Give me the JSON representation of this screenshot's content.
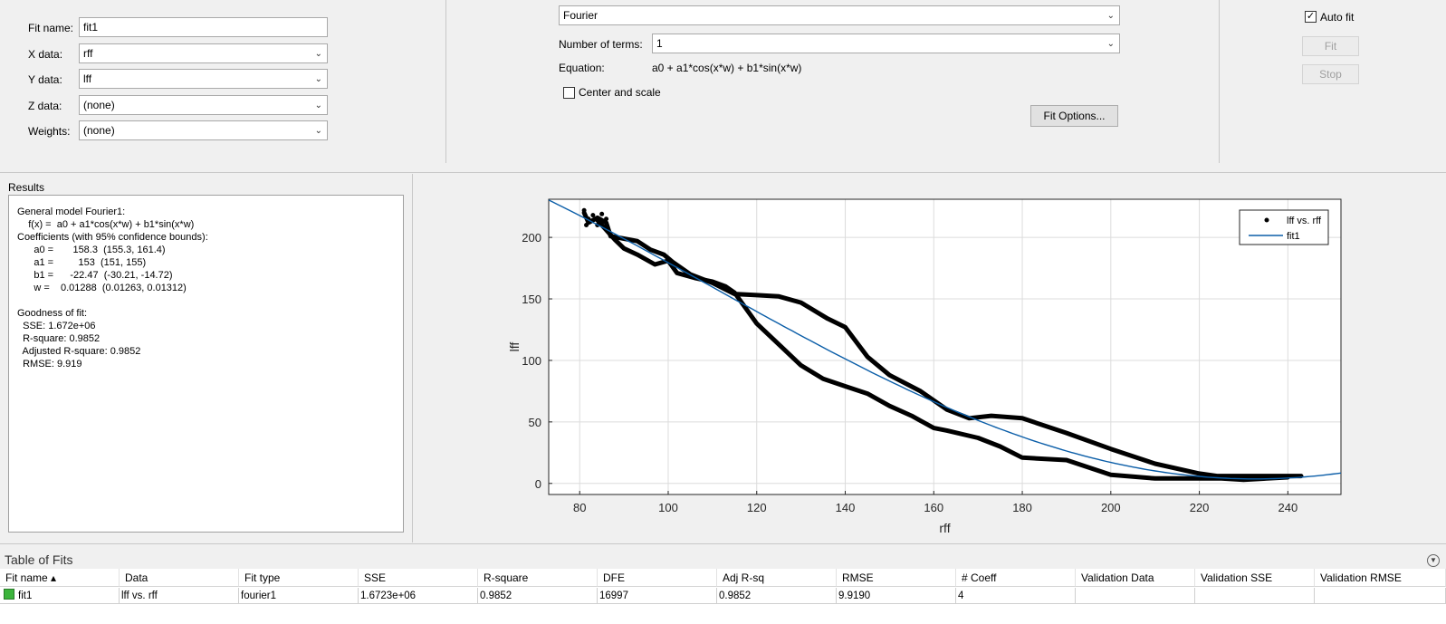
{
  "fit_settings": {
    "fit_name_label": "Fit name:",
    "fit_name_value": "fit1",
    "x_data_label": "X data:",
    "x_data_value": "rff",
    "y_data_label": "Y data:",
    "y_data_value": "lff",
    "z_data_label": "Z data:",
    "z_data_value": "(none)",
    "weights_label": "Weights:",
    "weights_value": "(none)"
  },
  "model": {
    "fit_type": "Fourier",
    "num_terms_label": "Number of terms:",
    "num_terms_value": "1",
    "equation_label": "Equation:",
    "equation_value": "a0 + a1*cos(x*w) + b1*sin(x*w)",
    "center_scale_label": "Center and scale",
    "center_scale_checked": false,
    "fit_options_label": "Fit Options..."
  },
  "controls": {
    "auto_fit_label": "Auto fit",
    "auto_fit_checked": true,
    "fit_label": "Fit",
    "stop_label": "Stop"
  },
  "results": {
    "title": "Results",
    "lines": [
      "General model Fourier1:",
      "    f(x) =  a0 + a1*cos(x*w) + b1*sin(x*w)",
      "Coefficients (with 95% confidence bounds):",
      "      a0 =       158.3  (155.3, 161.4)",
      "      a1 =         153  (151, 155)",
      "      b1 =      -22.47  (-30.21, -14.72)",
      "      w =    0.01288  (0.01263, 0.01312)",
      "",
      "Goodness of fit:",
      "  SSE: 1.672e+06",
      "  R-square: 0.9852",
      "  Adjusted R-square: 0.9852",
      "  RMSE: 9.919"
    ]
  },
  "chart_data": {
    "type": "scatter",
    "xlabel": "rff",
    "ylabel": "lff",
    "xlim": [
      73,
      252
    ],
    "ylim": [
      -9,
      231
    ],
    "xticks": [
      80,
      100,
      120,
      140,
      160,
      180,
      200,
      220,
      240
    ],
    "yticks": [
      0,
      50,
      100,
      150,
      200
    ],
    "grid": true,
    "legend_position": "top-right",
    "series": [
      {
        "name": "lff vs. rff",
        "style": "black dots",
        "color": "#000000",
        "x": [
          81,
          82,
          84,
          86,
          87,
          90,
          93,
          96,
          99,
          101,
          105,
          110,
          115,
          120,
          125,
          130,
          136,
          140,
          145,
          150,
          157,
          163,
          168,
          173,
          180,
          190,
          200,
          210,
          220,
          224,
          243
        ],
        "y": [
          220,
          212,
          216,
          212,
          201,
          199,
          197,
          190,
          186,
          180,
          170,
          163,
          154,
          153,
          152,
          147,
          134,
          127,
          103,
          88,
          75,
          60,
          53,
          55,
          53,
          41,
          28,
          16,
          8,
          6,
          6
        ],
        "lower_branch": {
          "x": [
            84,
            88,
            90,
            93,
            97,
            100,
            102,
            106,
            110,
            113,
            115,
            117,
            120,
            125,
            130,
            135,
            140,
            145,
            150,
            155,
            160,
            163,
            170,
            175,
            180,
            190,
            200,
            210,
            220,
            225,
            230,
            240
          ],
          "y": [
            214,
            198,
            191,
            186,
            178,
            181,
            171,
            167,
            164,
            160,
            155,
            145,
            130,
            113,
            96,
            85,
            79,
            73,
            63,
            55,
            45,
            43,
            37,
            30,
            21,
            19,
            7,
            4,
            4,
            4,
            3,
            5
          ]
        }
      },
      {
        "name": "fit1",
        "style": "blue line",
        "color": "#0b5ea8",
        "model": {
          "a0": 158.3,
          "a1": 153,
          "b1": -22.47,
          "w": 0.01288
        }
      }
    ]
  },
  "table_of_fits": {
    "title": "Table of Fits",
    "columns": [
      "Fit name",
      "Data",
      "Fit type",
      "SSE",
      "R-square",
      "DFE",
      "Adj R-sq",
      "RMSE",
      "# Coeff",
      "Validation Data",
      "Validation SSE",
      "Validation RMSE"
    ],
    "rows": [
      [
        "fit1",
        "lff vs. rff",
        "fourier1",
        "1.6723e+06",
        "0.9852",
        "16997",
        "0.9852",
        "9.9190",
        "4",
        "",
        "",
        ""
      ]
    ],
    "row_color": "#3cb43c"
  }
}
